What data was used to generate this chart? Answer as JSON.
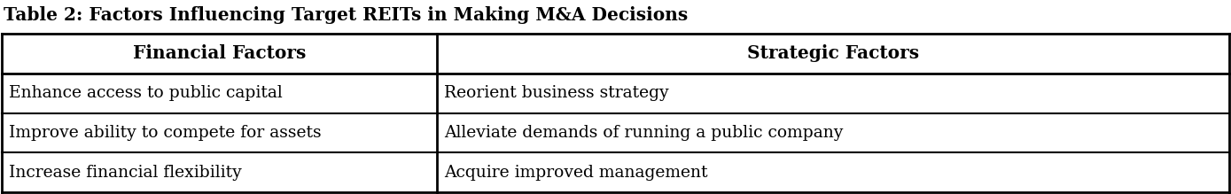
{
  "title": "Table 2: Factors Influencing Target REITs in Making M&A Decisions",
  "col_headers": [
    "Financial Factors",
    "Strategic Factors"
  ],
  "rows": [
    [
      "Enhance access to public capital",
      "Reorient business strategy"
    ],
    [
      "Improve ability to compete for assets",
      "Alleviate demands of running a public company"
    ],
    [
      "Increase financial flexibility",
      "Acquire improved management"
    ]
  ],
  "col_split": 0.355,
  "background_color": "#ffffff",
  "border_color": "#000000",
  "title_fontsize": 14.5,
  "header_fontsize": 14.5,
  "cell_fontsize": 13.5,
  "title_color": "#000000",
  "header_text_color": "#000000",
  "cell_text_color": "#000000",
  "fig_width": 13.89,
  "fig_height": 2.19,
  "dpi": 100
}
